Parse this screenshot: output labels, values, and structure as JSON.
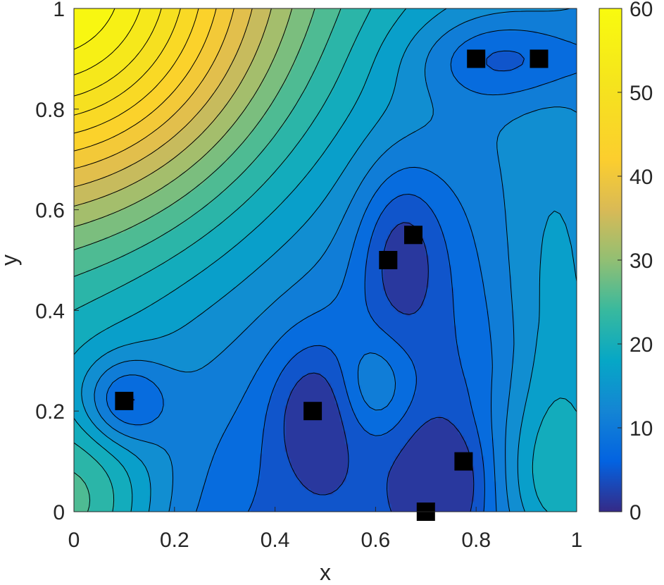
{
  "chart_data": {
    "type": "contour",
    "xlabel": "x",
    "ylabel": "y",
    "xlim": [
      0,
      1
    ],
    "ylim": [
      0,
      1
    ],
    "x_ticks": [
      "0",
      "0.2",
      "0.4",
      "0.6",
      "0.8",
      "1"
    ],
    "y_ticks": [
      "0",
      "0.2",
      "0.4",
      "0.6",
      "0.8",
      "1"
    ],
    "colorbar": {
      "range": [
        0,
        60
      ],
      "ticks": [
        "0",
        "10",
        "20",
        "30",
        "40",
        "50",
        "60"
      ],
      "colormap": "parula"
    },
    "contour_levels_step": 3,
    "markers": {
      "shape": "square",
      "color": "#000000",
      "points": [
        {
          "x": 0.1,
          "y": 0.22
        },
        {
          "x": 0.475,
          "y": 0.2
        },
        {
          "x": 0.625,
          "y": 0.5
        },
        {
          "x": 0.675,
          "y": 0.55
        },
        {
          "x": 0.8,
          "y": 0.9
        },
        {
          "x": 0.925,
          "y": 0.9
        },
        {
          "x": 0.775,
          "y": 0.1
        },
        {
          "x": 0.7,
          "y": 0.0
        }
      ]
    }
  }
}
